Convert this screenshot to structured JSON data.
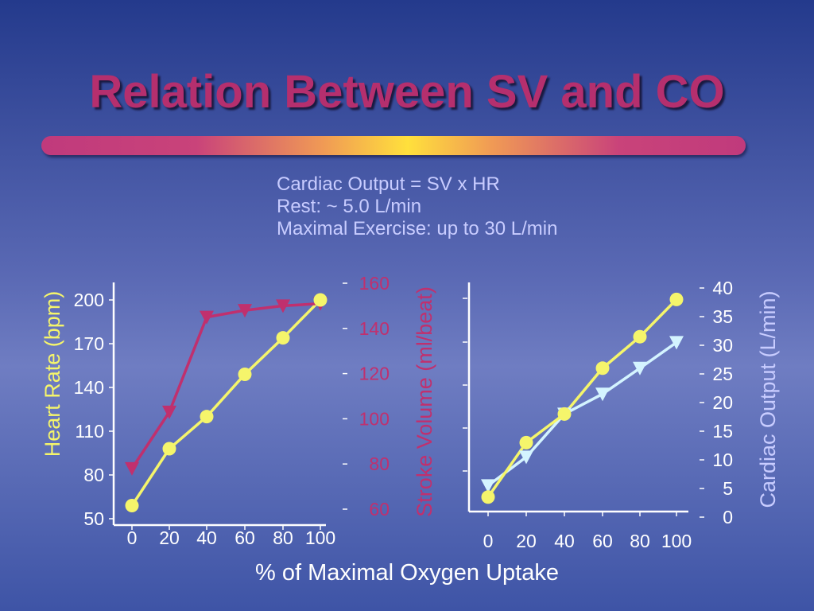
{
  "title": "Relation Between SV and CO",
  "notes": [
    "Cardiac Output = SV x HR",
    "Rest: ~ 5.0 L/min",
    "Maximal Exercise: up to 30 L/min"
  ],
  "colors": {
    "title": "#b52f6e",
    "hr": "#f5f56b",
    "sv": "#c0306e",
    "co": "#f5f56b",
    "co_marker_series": "#d4f4ff",
    "notes": "#c8ccff",
    "axis": "#ffffff"
  },
  "chart_data": [
    {
      "type": "line",
      "xlabel": "% of Maximal Oxygen Uptake",
      "x": [
        0,
        20,
        40,
        60,
        80,
        100
      ],
      "xticks": [
        "0",
        "20",
        "40",
        "60",
        "80",
        "100"
      ],
      "left_axis": {
        "label": "Heart Rate (bpm)",
        "ylim": [
          50,
          200
        ],
        "ticks": [
          "50",
          "80",
          "110",
          "140",
          "170",
          "200"
        ],
        "tick_values": [
          50,
          80,
          110,
          140,
          170,
          200
        ]
      },
      "right_axis": {
        "label": "Stroke Volume (ml/beat)",
        "ylim": [
          60,
          160
        ],
        "ticks": [
          "60",
          "80",
          "100",
          "120",
          "140",
          "160"
        ],
        "tick_values": [
          60,
          80,
          100,
          120,
          140,
          160
        ]
      },
      "series": [
        {
          "axis": "left",
          "marker": "circle",
          "values": [
            59,
            98,
            120,
            149,
            174,
            200
          ]
        },
        {
          "axis": "right",
          "marker": "triangle-down",
          "values": [
            78,
            103,
            145,
            148,
            150,
            151
          ]
        }
      ]
    },
    {
      "type": "line",
      "xlabel": "% of Maximal Oxygen Uptake",
      "x": [
        0,
        20,
        40,
        60,
        80,
        100
      ],
      "xticks": [
        "0",
        "20",
        "40",
        "60",
        "80",
        "100"
      ],
      "right_axis": {
        "label": "Cardiac Output (L/min)",
        "ylim": [
          0,
          40
        ],
        "ticks": [
          "0",
          "5",
          "10",
          "15",
          "20",
          "25",
          "30",
          "35",
          "40"
        ],
        "tick_values": [
          0,
          5,
          10,
          15,
          20,
          25,
          30,
          35,
          40
        ]
      },
      "series": [
        {
          "axis": "right",
          "marker": "circle",
          "values": [
            3.5,
            13,
            18,
            26,
            31.5,
            38
          ]
        },
        {
          "axis": "right",
          "marker": "triangle-down",
          "values": [
            5.5,
            10.5,
            18,
            21.5,
            26,
            30.5
          ]
        }
      ]
    }
  ]
}
